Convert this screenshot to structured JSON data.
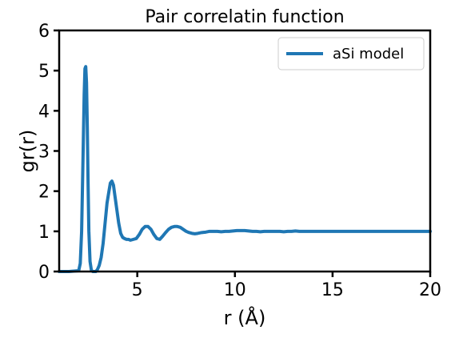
{
  "chart_data": {
    "type": "line",
    "title": "Pair correlatin function",
    "xlabel": "r (Å)",
    "ylabel": "gr(r)",
    "xlim": [
      1,
      20
    ],
    "ylim": [
      0,
      6
    ],
    "xticks": [
      5,
      10,
      15,
      20
    ],
    "yticks": [
      0,
      1,
      2,
      3,
      4,
      5,
      6
    ],
    "legend": {
      "position": "top-right"
    },
    "series": [
      {
        "name": "aSi model",
        "color": "#1f77b4",
        "x": [
          1.0,
          1.5,
          2.0,
          2.08,
          2.15,
          2.22,
          2.28,
          2.32,
          2.36,
          2.4,
          2.44,
          2.48,
          2.52,
          2.58,
          2.65,
          2.72,
          2.8,
          2.88,
          2.96,
          3.05,
          3.15,
          3.25,
          3.35,
          3.45,
          3.55,
          3.62,
          3.7,
          3.78,
          3.85,
          3.95,
          4.05,
          4.15,
          4.25,
          4.35,
          4.45,
          4.55,
          4.65,
          4.8,
          4.95,
          5.1,
          5.25,
          5.4,
          5.55,
          5.7,
          5.85,
          6.0,
          6.15,
          6.3,
          6.45,
          6.6,
          6.75,
          6.9,
          7.05,
          7.2,
          7.35,
          7.5,
          7.65,
          7.8,
          7.95,
          8.1,
          8.3,
          8.5,
          8.7,
          8.9,
          9.1,
          9.3,
          9.5,
          9.7,
          9.9,
          10.1,
          10.3,
          10.5,
          10.7,
          10.9,
          11.1,
          11.3,
          11.5,
          11.7,
          11.9,
          12.1,
          12.3,
          12.5,
          12.7,
          12.9,
          13.1,
          13.3,
          13.5,
          13.7,
          13.9,
          14.1,
          14.3,
          14.5,
          14.7,
          14.9,
          15.1,
          15.3,
          15.5,
          15.7,
          15.9,
          16.1,
          16.3,
          16.5,
          16.7,
          16.9,
          17.1,
          17.3,
          17.5,
          17.7,
          17.9,
          18.1,
          18.3,
          18.5,
          18.7,
          18.9,
          19.1,
          19.3,
          19.5,
          19.7,
          20.0
        ],
        "y": [
          0.0,
          0.0,
          0.02,
          0.2,
          1.0,
          2.8,
          4.4,
          5.05,
          5.1,
          4.7,
          3.6,
          2.2,
          1.0,
          0.25,
          0.03,
          0.0,
          0.0,
          0.0,
          0.05,
          0.15,
          0.35,
          0.7,
          1.2,
          1.7,
          2.0,
          2.2,
          2.25,
          2.15,
          1.9,
          1.55,
          1.2,
          0.95,
          0.85,
          0.82,
          0.8,
          0.8,
          0.78,
          0.8,
          0.82,
          0.92,
          1.05,
          1.12,
          1.12,
          1.05,
          0.92,
          0.82,
          0.8,
          0.88,
          0.97,
          1.05,
          1.1,
          1.12,
          1.12,
          1.1,
          1.05,
          1.0,
          0.97,
          0.95,
          0.94,
          0.95,
          0.97,
          0.98,
          1.0,
          1.0,
          1.0,
          0.99,
          1.0,
          1.0,
          1.01,
          1.02,
          1.02,
          1.02,
          1.01,
          1.0,
          1.0,
          0.99,
          1.0,
          1.0,
          1.0,
          1.0,
          1.0,
          0.99,
          1.0,
          1.0,
          1.01,
          1.0,
          1.0,
          1.0,
          1.0,
          1.0,
          1.0,
          1.0,
          1.0,
          1.0,
          1.0,
          1.0,
          1.0,
          1.0,
          1.0,
          1.0,
          1.0,
          1.0,
          1.0,
          1.0,
          1.0,
          1.0,
          1.0,
          1.0,
          1.0,
          1.0,
          1.0,
          1.0,
          1.0,
          1.0,
          1.0,
          1.0,
          1.0,
          1.0,
          1.0
        ]
      }
    ]
  }
}
